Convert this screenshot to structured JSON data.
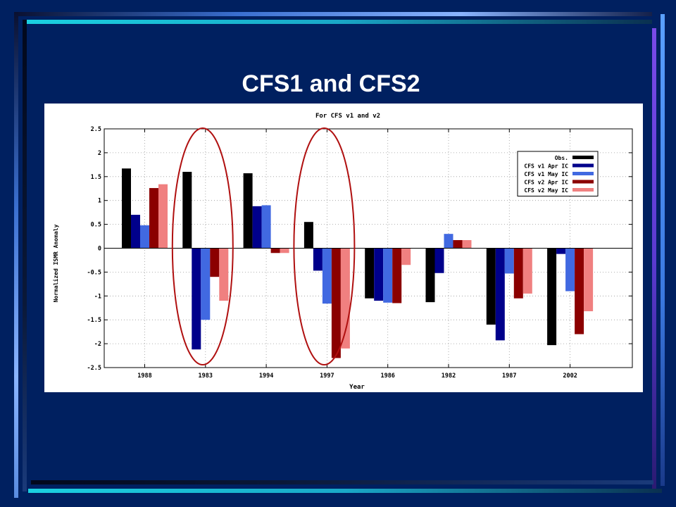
{
  "slide": {
    "title": "CFS1 and CFS2"
  },
  "colors": {
    "background": "#002060",
    "highlight_ellipse": "#b01010"
  },
  "chart_data": {
    "type": "bar",
    "title": "For CFS v1 and v2",
    "xlabel": "Year",
    "ylabel": "Normalized ISMR Anomaly",
    "ylim": [
      -2.5,
      2.5
    ],
    "yticks": [
      -2.5,
      -2,
      -1.5,
      -1,
      -0.5,
      0,
      0.5,
      1,
      1.5,
      2,
      2.5
    ],
    "ytick_labels": [
      "-2.5",
      "-2",
      "-1.5",
      "-1",
      "-0.5",
      "0",
      "0.5",
      "1",
      "1.5",
      "2",
      "2.5"
    ],
    "grid": true,
    "legend_position": "top-right",
    "categories": [
      "1988",
      "1983",
      "1994",
      "1997",
      "1986",
      "1982",
      "1987",
      "2002"
    ],
    "series": [
      {
        "name": "Obs.",
        "color": "#000000",
        "values": [
          1.67,
          1.6,
          1.57,
          0.55,
          -1.05,
          -1.13,
          -1.6,
          -2.03
        ]
      },
      {
        "name": "CFS v1 Apr IC",
        "color": "#00008b",
        "values": [
          0.7,
          -2.12,
          0.88,
          -0.47,
          -1.1,
          -0.52,
          -1.93,
          -0.12
        ]
      },
      {
        "name": "CFS v1 May IC",
        "color": "#4169e1",
        "values": [
          0.48,
          -1.5,
          0.9,
          -1.16,
          -1.14,
          0.3,
          -0.53,
          -0.9
        ]
      },
      {
        "name": "CFS v2 Apr IC",
        "color": "#8b0000",
        "values": [
          1.26,
          -0.6,
          -0.1,
          -2.3,
          -1.15,
          0.17,
          -1.05,
          -1.8
        ]
      },
      {
        "name": "CFS v2 May IC",
        "color": "#f08080",
        "values": [
          1.34,
          -1.1,
          -0.1,
          -2.1,
          -0.35,
          0.17,
          -0.95,
          -1.32
        ]
      }
    ],
    "highlighted_categories": [
      "1983",
      "1997"
    ]
  }
}
